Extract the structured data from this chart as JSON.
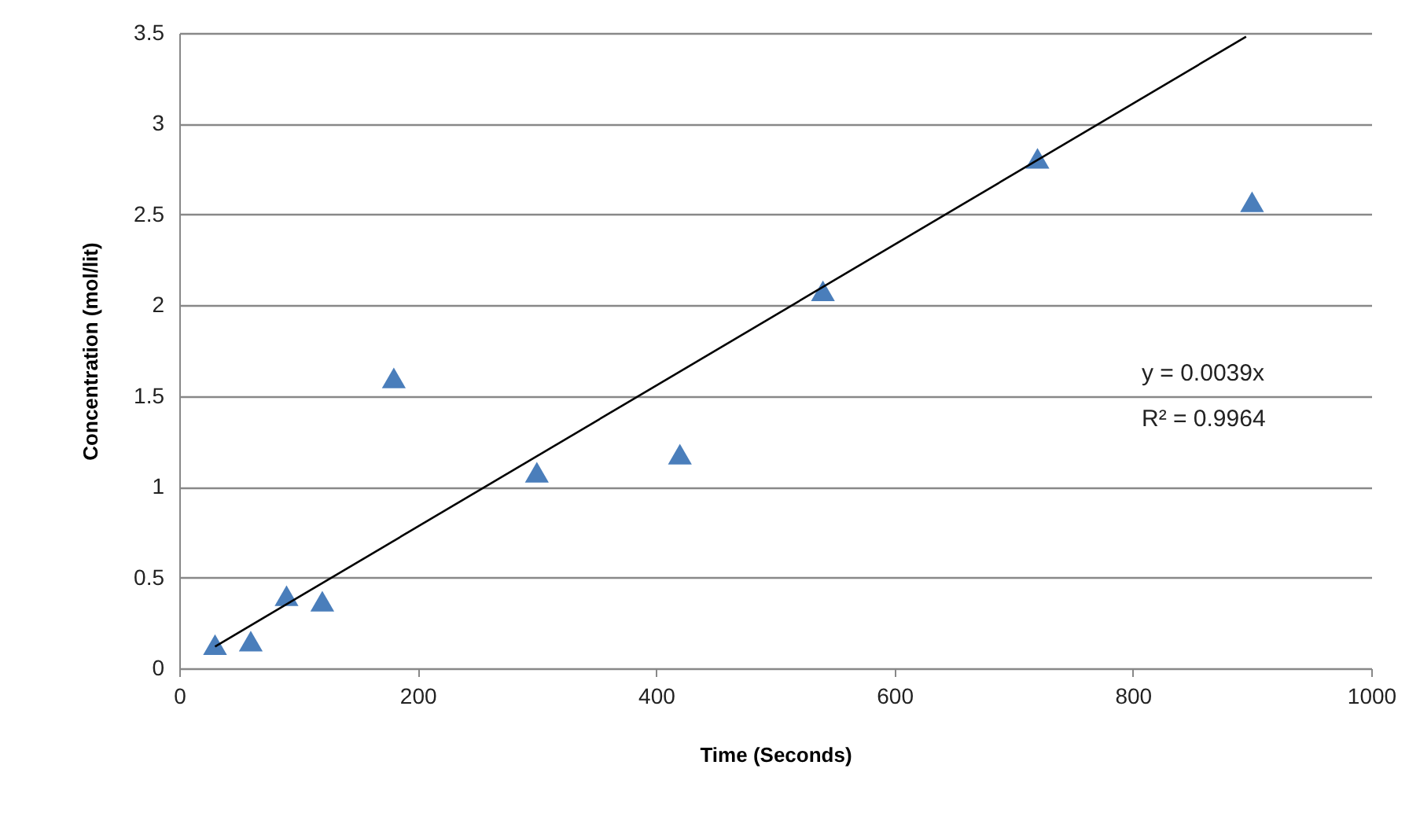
{
  "chart_data": {
    "type": "scatter",
    "xlabel": "Time (Seconds)",
    "ylabel": "Concentration (mol/lit)",
    "xlim": [
      0,
      1000
    ],
    "xticks": [
      0,
      200,
      400,
      600,
      800,
      1000
    ],
    "ylim": [
      0,
      3.5
    ],
    "yticks": [
      0,
      0.5,
      1,
      1.5,
      2,
      2.5,
      3,
      3.5
    ],
    "grid": "y",
    "annotations": [
      "y = 0.0039x",
      "R² = 0.9964"
    ],
    "series": [
      {
        "marker": "triangle",
        "color": "#4a7ebb",
        "x": [
          30,
          60,
          90,
          120,
          180,
          300,
          420,
          540,
          720,
          900
        ],
        "values": [
          0.13,
          0.15,
          0.4,
          0.37,
          1.6,
          1.08,
          1.18,
          2.08,
          2.81,
          2.57
        ]
      },
      {
        "type": "line",
        "marker": "none",
        "color": "#000000",
        "x": [
          30,
          895
        ],
        "values": [
          0.12,
          3.48
        ]
      }
    ]
  }
}
